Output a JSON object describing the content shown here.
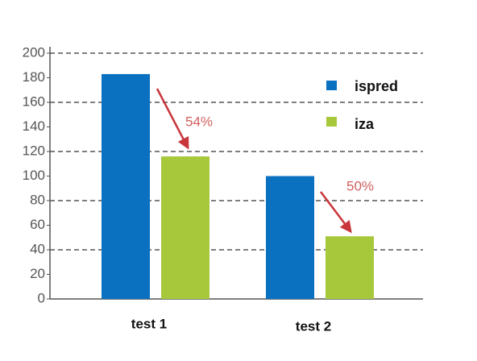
{
  "chart_data": {
    "type": "bar",
    "categories": [
      "test 1",
      "test 2"
    ],
    "series": [
      {
        "name": "ispred",
        "color": "#0a70c0",
        "values": [
          183,
          100
        ]
      },
      {
        "name": "iza",
        "color": "#a8c83c",
        "values": [
          116,
          51
        ]
      }
    ],
    "ylim": [
      0,
      200
    ],
    "yticks": [
      0,
      20,
      40,
      60,
      80,
      100,
      120,
      140,
      160,
      180,
      200
    ],
    "grid": true,
    "annotations": [
      "54%",
      "50%"
    ]
  }
}
